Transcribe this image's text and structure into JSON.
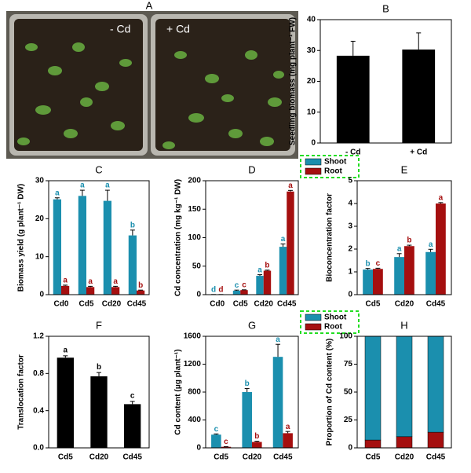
{
  "photo": {
    "panel": "A",
    "labels": [
      "- Cd",
      "+ Cd"
    ]
  },
  "chart_data": [
    {
      "type": "bar",
      "label": "B",
      "ylabel": "Seedling biomass (mg plant⁻¹ FW)",
      "categories": [
        "- Cd",
        "+ Cd"
      ],
      "values": [
        28.3,
        30.3
      ],
      "errors": [
        4.7,
        5.4
      ],
      "color": "#000000",
      "ylim": [
        0,
        40
      ],
      "yticks": [
        0,
        10,
        20,
        30,
        40
      ]
    },
    {
      "type": "grouped_bar",
      "label": "C",
      "ylabel": "Biomass yield (g plant⁻¹ DW)",
      "categories": [
        "Cd0",
        "Cd5",
        "Cd20",
        "Cd45"
      ],
      "ylim": [
        0,
        30
      ],
      "yticks": [
        0,
        10,
        20,
        30
      ],
      "legend": false,
      "series": [
        {
          "name": "Shoot",
          "color": "#1b8fae",
          "values": [
            25.1,
            26,
            24.7,
            15.6
          ],
          "errors": [
            0.4,
            1.5,
            2.8,
            1.4
          ],
          "letters": [
            "a",
            "a",
            "a",
            "b"
          ]
        },
        {
          "name": "Root",
          "color": "#a50f0f",
          "values": [
            2.3,
            2,
            2,
            1.1
          ],
          "errors": [
            0.2,
            0.2,
            0.2,
            0.1
          ],
          "letters": [
            "a",
            "a",
            "a",
            "b"
          ]
        }
      ]
    },
    {
      "type": "grouped_bar",
      "label": "D",
      "ylabel": "Cd concentration (mg kg⁻¹ DW)",
      "categories": [
        "Cd0",
        "Cd5",
        "Cd20",
        "Cd45"
      ],
      "ylim": [
        0,
        200
      ],
      "yticks": [
        0,
        50,
        100,
        150,
        200
      ],
      "legend": true,
      "series": [
        {
          "name": "Shoot",
          "color": "#1b8fae",
          "values": [
            0.3,
            7,
            33,
            84
          ],
          "errors": [
            0,
            1,
            2,
            5
          ],
          "letters": [
            "d",
            "c",
            "a",
            "a"
          ]
        },
        {
          "name": "Root",
          "color": "#a50f0f",
          "values": [
            0.3,
            8,
            42,
            181
          ],
          "errors": [
            0,
            0.5,
            1,
            2
          ],
          "letters": [
            "d",
            "c",
            "b",
            "a"
          ]
        }
      ]
    },
    {
      "type": "grouped_bar",
      "label": "E",
      "ylabel": "Bioconcentration factor",
      "categories": [
        "Cd5",
        "Cd20",
        "Cd45"
      ],
      "ylim": [
        0,
        5
      ],
      "yticks": [
        0,
        1,
        2,
        3,
        4,
        5
      ],
      "legend": false,
      "series": [
        {
          "name": "Shoot",
          "color": "#1b8fae",
          "values": [
            1.1,
            1.65,
            1.87
          ],
          "errors": [
            0.05,
            0.15,
            0.12
          ],
          "letters": [
            "b",
            "a",
            "a"
          ]
        },
        {
          "name": "Root",
          "color": "#a50f0f",
          "values": [
            1.13,
            2.13,
            4.0
          ],
          "errors": [
            0.03,
            0.04,
            0.04
          ],
          "letters": [
            "c",
            "b",
            "a"
          ]
        }
      ]
    },
    {
      "type": "bar",
      "label": "F",
      "ylabel": "Translocation factor",
      "categories": [
        "Cd5",
        "Cd20",
        "Cd45"
      ],
      "values": [
        0.97,
        0.77,
        0.47
      ],
      "errors": [
        0.02,
        0.04,
        0.03
      ],
      "letters": [
        "a",
        "b",
        "c"
      ],
      "color": "#000000",
      "ylim": [
        0,
        1.2
      ],
      "yticks": [
        {
          "value": 0,
          "label": "0.0"
        },
        0.4,
        0.8,
        1.2
      ]
    },
    {
      "type": "grouped_bar",
      "label": "G",
      "ylabel": "Cd content (μg plant⁻¹)",
      "categories": [
        "Cd5",
        "Cd20",
        "Cd45"
      ],
      "ylim": [
        0,
        1600
      ],
      "yticks": [
        0,
        400,
        800,
        1200,
        1600
      ],
      "legend": true,
      "series": [
        {
          "name": "Shoot",
          "color": "#1b8fae",
          "values": [
            190,
            800,
            1305
          ],
          "errors": [
            10,
            50,
            180
          ],
          "letters": [
            "c",
            "b",
            "a"
          ]
        },
        {
          "name": "Root",
          "color": "#a50f0f",
          "values": [
            15,
            85,
            210
          ],
          "errors": [
            3,
            10,
            25
          ],
          "letters": [
            "c",
            "b",
            "a"
          ]
        }
      ]
    },
    {
      "type": "stacked_bar",
      "label": "H",
      "ylabel": "Proportion of Cd content (%)",
      "categories": [
        "Cd5",
        "Cd20",
        "Cd45"
      ],
      "ylim": [
        0,
        100
      ],
      "yticks": [
        0,
        25,
        50,
        75,
        100
      ],
      "legend": false,
      "series": [
        {
          "name": "Root",
          "color": "#a50f0f",
          "values": [
            7,
            10,
            14
          ]
        },
        {
          "name": "Shoot",
          "color": "#1b8fae",
          "values": [
            93,
            90,
            86
          ]
        }
      ]
    }
  ]
}
